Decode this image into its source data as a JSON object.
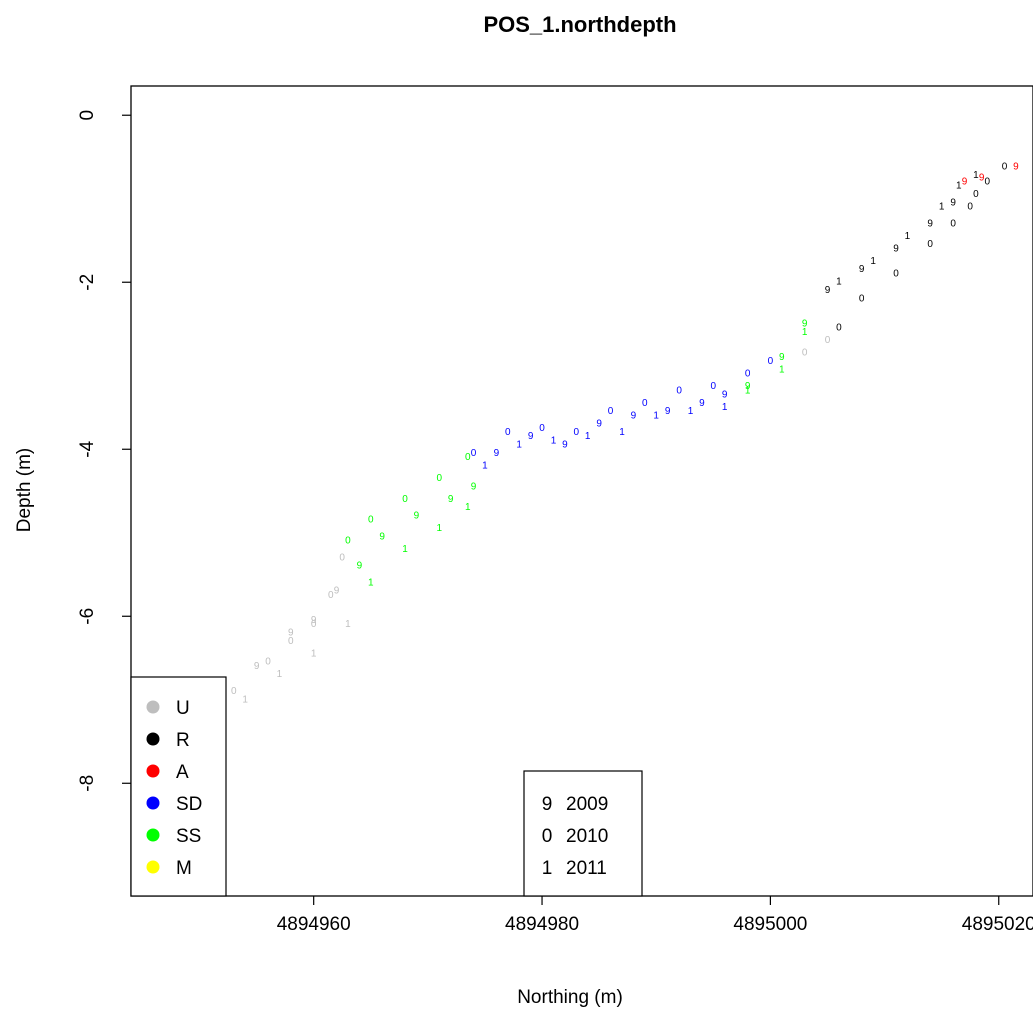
{
  "chart_data": {
    "type": "scatter",
    "title": "POS_1.northdepth",
    "xlabel": "Northing (m)",
    "ylabel": "Depth (m)",
    "xlim": [
      4894944,
      4895023
    ],
    "ylim": [
      -9.35,
      0.35
    ],
    "x_ticks": [
      {
        "value": 4894960,
        "label": "4894960"
      },
      {
        "value": 4894980,
        "label": "4894980"
      },
      {
        "value": 4895000,
        "label": "4895000"
      },
      {
        "value": 4895020,
        "label": "4895020"
      }
    ],
    "y_ticks": [
      {
        "value": 0,
        "label": "0"
      },
      {
        "value": -2,
        "label": "-2"
      },
      {
        "value": -4,
        "label": "-4"
      },
      {
        "value": -6,
        "label": "-6"
      },
      {
        "value": -8,
        "label": "-8"
      }
    ],
    "colors": {
      "U": "#bebebe",
      "R": "#000000",
      "A": "#ff0000",
      "SD": "#0000ff",
      "SS": "#00ff00",
      "M": "#ffff00"
    },
    "legend_status": [
      {
        "label": "U",
        "color": "#bebebe"
      },
      {
        "label": "R",
        "color": "#000000"
      },
      {
        "label": "A",
        "color": "#ff0000"
      },
      {
        "label": "SD",
        "color": "#0000ff"
      },
      {
        "label": "SS",
        "color": "#00ff00"
      },
      {
        "label": "M",
        "color": "#ffff00"
      }
    ],
    "legend_status_position": "bottom-left",
    "legend_year": [
      {
        "symbol": "9",
        "label": "2009"
      },
      {
        "symbol": "0",
        "label": "2010"
      },
      {
        "symbol": "1",
        "label": "2011"
      }
    ],
    "legend_year_position": "bottom-center",
    "series": [
      {
        "symbol": "0",
        "segments": [
          {
            "status": "U",
            "points": [
              [
                4894948.0,
                -7.55
              ],
              [
                4894950.0,
                -7.25
              ],
              [
                4894953.0,
                -6.9
              ],
              [
                4894956.0,
                -6.55
              ],
              [
                4894958.0,
                -6.3
              ],
              [
                4894960.0,
                -6.1
              ],
              [
                4894961.5,
                -5.75
              ],
              [
                4894962.5,
                -5.3
              ]
            ]
          },
          {
            "status": "SS",
            "points": [
              [
                4894963.0,
                -5.1
              ],
              [
                4894965.0,
                -4.85
              ],
              [
                4894968.0,
                -4.6
              ],
              [
                4894971.0,
                -4.35
              ],
              [
                4894973.5,
                -4.1
              ]
            ]
          },
          {
            "status": "SD",
            "points": [
              [
                4894974.0,
                -4.05
              ],
              [
                4894977.0,
                -3.8
              ],
              [
                4894980.0,
                -3.75
              ],
              [
                4894983.0,
                -3.8
              ],
              [
                4894986.0,
                -3.55
              ],
              [
                4894989.0,
                -3.45
              ],
              [
                4894992.0,
                -3.3
              ],
              [
                4894995.0,
                -3.25
              ],
              [
                4894998.0,
                -3.1
              ],
              [
                4895000.0,
                -2.95
              ]
            ]
          },
          {
            "status": "U",
            "points": [
              [
                4895003.0,
                -2.85
              ],
              [
                4895005.0,
                -2.7
              ]
            ]
          },
          {
            "status": "R",
            "points": [
              [
                4895006.0,
                -2.55
              ],
              [
                4895008.0,
                -2.2
              ],
              [
                4895011.0,
                -1.9
              ],
              [
                4895014.0,
                -1.55
              ],
              [
                4895016.0,
                -1.3
              ],
              [
                4895017.5,
                -1.1
              ],
              [
                4895018.0,
                -0.95
              ],
              [
                4895019.0,
                -0.8
              ],
              [
                4895020.5,
                -0.62
              ]
            ]
          }
        ]
      },
      {
        "symbol": "9",
        "segments": [
          {
            "status": "U",
            "points": [
              [
                4894948.0,
                -7.6
              ],
              [
                4894950.0,
                -7.4
              ],
              [
                4894952.0,
                -7.0
              ],
              [
                4894955.0,
                -6.6
              ],
              [
                4894958.0,
                -6.2
              ],
              [
                4894960.0,
                -6.05
              ],
              [
                4894962.0,
                -5.7
              ]
            ]
          },
          {
            "status": "SS",
            "points": [
              [
                4894964.0,
                -5.4
              ],
              [
                4894966.0,
                -5.05
              ],
              [
                4894969.0,
                -4.8
              ],
              [
                4894972.0,
                -4.6
              ],
              [
                4894974.0,
                -4.45
              ]
            ]
          },
          {
            "status": "SD",
            "points": [
              [
                4894976.0,
                -4.05
              ],
              [
                4894979.0,
                -3.85
              ],
              [
                4894982.0,
                -3.95
              ],
              [
                4894985.0,
                -3.7
              ],
              [
                4894988.0,
                -3.6
              ],
              [
                4894991.0,
                -3.55
              ],
              [
                4894994.0,
                -3.45
              ],
              [
                4894996.0,
                -3.35
              ]
            ]
          },
          {
            "status": "SS",
            "points": [
              [
                4894998.0,
                -3.25
              ],
              [
                4895001.0,
                -2.9
              ],
              [
                4895003.0,
                -2.5
              ]
            ]
          },
          {
            "status": "R",
            "points": [
              [
                4895005.0,
                -2.1
              ],
              [
                4895008.0,
                -1.85
              ],
              [
                4895011.0,
                -1.6
              ],
              [
                4895014.0,
                -1.3
              ],
              [
                4895016.0,
                -1.05
              ]
            ]
          },
          {
            "status": "A",
            "points": [
              [
                4895017.0,
                -0.8
              ],
              [
                4895018.5,
                -0.75
              ],
              [
                4895021.5,
                -0.62
              ]
            ]
          }
        ]
      },
      {
        "symbol": "1",
        "segments": [
          {
            "status": "U",
            "points": [
              [
                4894948.5,
                -7.7
              ],
              [
                4894951.0,
                -7.45
              ],
              [
                4894954.0,
                -7.0
              ],
              [
                4894957.0,
                -6.7
              ],
              [
                4894960.0,
                -6.45
              ],
              [
                4894963.0,
                -6.1
              ]
            ]
          },
          {
            "status": "SS",
            "points": [
              [
                4894965.0,
                -5.6
              ],
              [
                4894968.0,
                -5.2
              ],
              [
                4894971.0,
                -4.95
              ],
              [
                4894973.5,
                -4.7
              ]
            ]
          },
          {
            "status": "SD",
            "points": [
              [
                4894975.0,
                -4.2
              ],
              [
                4894978.0,
                -3.95
              ],
              [
                4894981.0,
                -3.9
              ],
              [
                4894984.0,
                -3.85
              ],
              [
                4894987.0,
                -3.8
              ],
              [
                4894990.0,
                -3.6
              ],
              [
                4894993.0,
                -3.55
              ],
              [
                4894996.0,
                -3.5
              ]
            ]
          },
          {
            "status": "SS",
            "points": [
              [
                4894998.0,
                -3.3
              ],
              [
                4895001.0,
                -3.05
              ],
              [
                4895003.0,
                -2.6
              ]
            ]
          },
          {
            "status": "R",
            "points": [
              [
                4895006.0,
                -2.0
              ],
              [
                4895009.0,
                -1.75
              ],
              [
                4895012.0,
                -1.45
              ],
              [
                4895015.0,
                -1.1
              ],
              [
                4895016.5,
                -0.85
              ],
              [
                4895018.0,
                -0.72
              ]
            ]
          }
        ]
      }
    ]
  }
}
